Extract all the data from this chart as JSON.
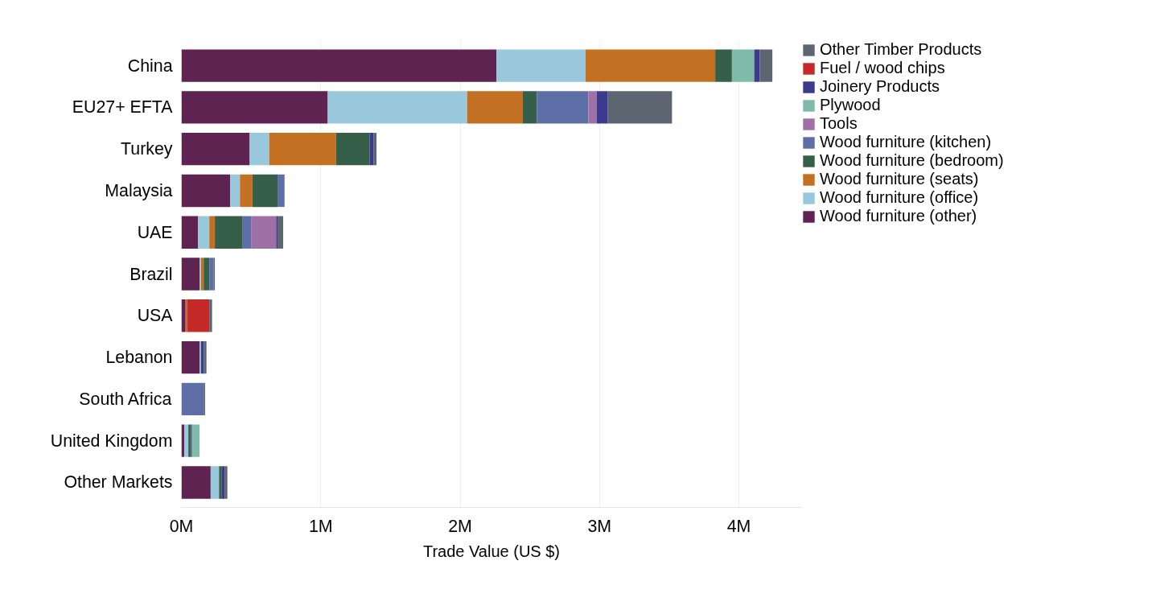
{
  "chart_data": {
    "type": "bar",
    "orientation": "horizontal",
    "stacked": true,
    "categories": [
      "China",
      "EU27+ EFTA",
      "Turkey",
      "Malaysia",
      "UAE",
      "Brazil",
      "USA",
      "Lebanon",
      "South Africa",
      "United Kingdom",
      "Other Markets"
    ],
    "series": [
      {
        "name": "Wood furniture (other)",
        "color": "#5e2350",
        "values": [
          2.26,
          1.05,
          0.49,
          0.35,
          0.12,
          0.13,
          0.03,
          0.13,
          0,
          0.02,
          0.21
        ]
      },
      {
        "name": "Wood furniture (office)",
        "color": "#99c7dc",
        "values": [
          0.64,
          1.0,
          0.14,
          0.07,
          0.08,
          0.01,
          0,
          0.01,
          0,
          0.03,
          0.06
        ]
      },
      {
        "name": "Wood furniture (seats)",
        "color": "#c37022",
        "values": [
          0.93,
          0.4,
          0.48,
          0.09,
          0.04,
          0.02,
          0.01,
          0,
          0,
          0,
          0
        ]
      },
      {
        "name": "Wood furniture (bedroom)",
        "color": "#355f48",
        "values": [
          0.12,
          0.1,
          0.24,
          0.18,
          0.2,
          0.04,
          0,
          0,
          0,
          0.02,
          0.02
        ]
      },
      {
        "name": "Wood furniture (kitchen)",
        "color": "#5e6fa8",
        "values": [
          0,
          0.37,
          0,
          0.05,
          0.06,
          0.03,
          0,
          0,
          0.16,
          0.01,
          0
        ]
      },
      {
        "name": "Tools",
        "color": "#9e70a6",
        "values": [
          0,
          0.06,
          0,
          0,
          0.18,
          0,
          0,
          0,
          0,
          0,
          0
        ]
      },
      {
        "name": "Plywood",
        "color": "#80bba9",
        "values": [
          0.16,
          0,
          0,
          0,
          0,
          0,
          0,
          0,
          0,
          0.05,
          0
        ]
      },
      {
        "name": "Joinery Products",
        "color": "#3b3a8c",
        "values": [
          0.04,
          0.08,
          0.03,
          0,
          0.01,
          0,
          0,
          0.02,
          0,
          0,
          0.02
        ]
      },
      {
        "name": "Fuel / wood chips",
        "color": "#c42b28",
        "values": [
          0,
          0,
          0,
          0,
          0,
          0,
          0.16,
          0,
          0,
          0,
          0
        ]
      },
      {
        "name": "Other Timber Products",
        "color": "#5d6670",
        "values": [
          0.09,
          0.46,
          0.02,
          0,
          0.04,
          0.01,
          0.02,
          0.02,
          0.01,
          0,
          0.02
        ]
      }
    ],
    "xlabel": "Trade Value (US $)",
    "xlim": [
      0,
      4.45
    ],
    "xticks": [
      {
        "value": 0,
        "label": "0M"
      },
      {
        "value": 1,
        "label": "1M"
      },
      {
        "value": 2,
        "label": "2M"
      },
      {
        "value": 3,
        "label": "3M"
      },
      {
        "value": 4,
        "label": "4M"
      }
    ],
    "grid": "x",
    "legend": "top right"
  }
}
